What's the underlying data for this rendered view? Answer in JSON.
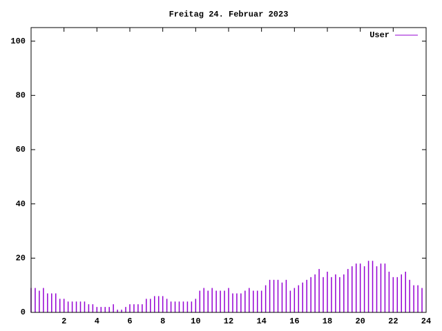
{
  "chart_data": {
    "type": "impulse",
    "title": "Freitag 24. Februar 2023",
    "x": [
      0,
      0.25,
      0.5,
      0.75,
      1,
      1.25,
      1.5,
      1.75,
      2,
      2.25,
      2.5,
      2.75,
      3,
      3.25,
      3.5,
      3.75,
      4,
      4.25,
      4.5,
      4.75,
      5,
      5.25,
      5.5,
      5.75,
      6,
      6.25,
      6.5,
      6.75,
      7,
      7.25,
      7.5,
      7.75,
      8,
      8.25,
      8.5,
      8.75,
      9,
      9.25,
      9.5,
      9.75,
      10,
      10.25,
      10.5,
      10.75,
      11,
      11.25,
      11.5,
      11.75,
      12,
      12.25,
      12.5,
      12.75,
      13,
      13.25,
      13.5,
      13.75,
      14,
      14.25,
      14.5,
      14.75,
      15,
      15.25,
      15.5,
      15.75,
      16,
      16.25,
      16.5,
      16.75,
      17,
      17.25,
      17.5,
      17.75,
      18,
      18.25,
      18.5,
      18.75,
      19,
      19.25,
      19.5,
      19.75,
      20,
      20.25,
      20.5,
      20.75,
      21,
      21.25,
      21.5,
      21.75,
      22,
      22.25,
      22.5,
      22.75,
      23,
      23.25,
      23.5,
      23.75
    ],
    "series": [
      {
        "name": "User",
        "color": "#9400d3",
        "values": [
          9,
          9,
          8,
          9,
          7,
          7,
          7,
          5,
          5,
          4,
          4,
          4,
          4,
          4,
          3,
          3,
          2,
          2,
          2,
          2,
          3,
          1,
          1,
          2,
          3,
          3,
          3,
          3,
          5,
          5,
          6,
          6,
          6,
          5,
          4,
          4,
          4,
          4,
          4,
          4,
          5,
          8,
          9,
          8,
          9,
          8,
          8,
          8,
          9,
          7,
          7,
          7,
          8,
          9,
          8,
          8,
          8,
          10,
          12,
          12,
          12,
          11,
          12,
          8,
          9,
          10,
          11,
          12,
          13,
          14,
          16,
          13,
          15,
          13,
          14,
          13,
          14,
          16,
          17,
          18,
          18,
          17,
          19,
          19,
          17,
          18,
          18,
          15,
          13,
          13,
          14,
          15,
          12,
          10,
          10,
          9
        ]
      }
    ],
    "xlim": [
      0,
      24
    ],
    "xticks": [
      2,
      4,
      6,
      8,
      10,
      12,
      14,
      16,
      18,
      20,
      22,
      24
    ],
    "ylim": [
      0,
      105
    ],
    "yticks": [
      0,
      20,
      40,
      60,
      80,
      100
    ],
    "legend": "top-right"
  }
}
